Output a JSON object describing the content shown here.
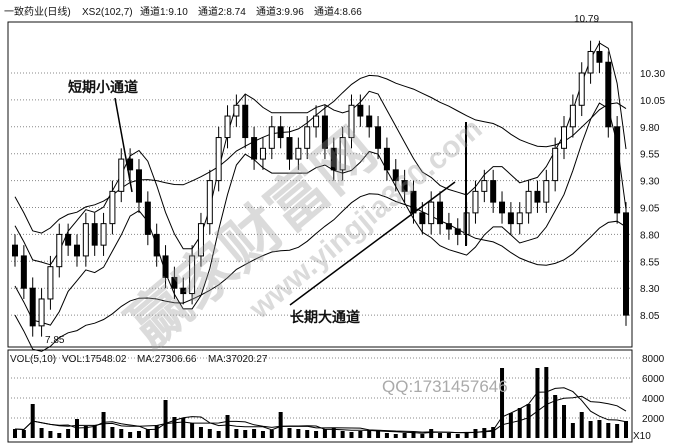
{
  "header": {
    "title": "一致药业(日线)",
    "indicator": "XS2(102,7)",
    "ch1": "通道1:9.10",
    "ch2": "通道2:8.74",
    "ch3": "通道3:9.96",
    "ch4": "通道4:8.66"
  },
  "volume_header": {
    "name": "VOL(5,10)",
    "vol": "VOL:17548.02",
    "ma1": "MA:27306.66",
    "ma2": "MA:37020.27"
  },
  "annotations": {
    "short": "短期小通道",
    "long": "长期大通道",
    "high": "10.79",
    "low": "7.85"
  },
  "watermark": {
    "cn": "赢家财富网",
    "url": "www.yingjia360.com",
    "qq": "QQ:1731457646"
  },
  "chart_data": [
    {
      "type": "candlestick",
      "ylim": [
        7.85,
        10.79
      ],
      "yticks": [
        "10.30",
        "10.05",
        "9.80",
        "9.55",
        "9.30",
        "9.05",
        "8.80",
        "8.55",
        "8.30",
        "8.05"
      ],
      "grid": true,
      "close": [
        8.6,
        8.3,
        7.95,
        8.2,
        8.5,
        8.8,
        8.7,
        8.6,
        8.9,
        8.7,
        8.9,
        9.2,
        9.5,
        9.4,
        9.1,
        8.8,
        8.6,
        8.4,
        8.3,
        8.25,
        8.6,
        8.9,
        9.3,
        9.7,
        9.9,
        10.0,
        9.7,
        9.5,
        9.6,
        9.8,
        9.7,
        9.5,
        9.6,
        9.8,
        9.9,
        9.6,
        9.4,
        9.7,
        10.0,
        9.9,
        9.8,
        9.6,
        9.4,
        9.3,
        9.2,
        9.0,
        8.9,
        9.1,
        8.9,
        8.85,
        8.8,
        9.0,
        9.2,
        9.3,
        9.1,
        9.0,
        8.9,
        9.0,
        9.2,
        9.1,
        9.3,
        9.6,
        9.8,
        10.0,
        10.3,
        10.5,
        10.4,
        9.8,
        9.0,
        8.05
      ]
    },
    {
      "type": "bar",
      "ylim": [
        0,
        8000
      ],
      "unit": "X10",
      "yticks": [
        "8000",
        "6000",
        "4000",
        "2000"
      ],
      "grid": true,
      "values": [
        900,
        800,
        3400,
        1000,
        700,
        500,
        900,
        1900,
        1200,
        1300,
        2600,
        1100,
        900,
        600,
        700,
        900,
        1300,
        3800,
        2100,
        2000,
        1500,
        1100,
        900,
        700,
        2300,
        900,
        800,
        900,
        700,
        800,
        2600,
        1000,
        900,
        800,
        700,
        900,
        1000,
        700,
        600,
        700,
        800,
        700,
        500,
        400,
        500,
        600,
        400,
        900,
        500,
        500,
        400,
        500,
        900,
        1000,
        1100,
        7000,
        2500,
        3000,
        3400,
        7000,
        7100,
        4300,
        3300,
        1500,
        2600,
        1700,
        1800,
        1500,
        1400,
        1700
      ]
    }
  ]
}
